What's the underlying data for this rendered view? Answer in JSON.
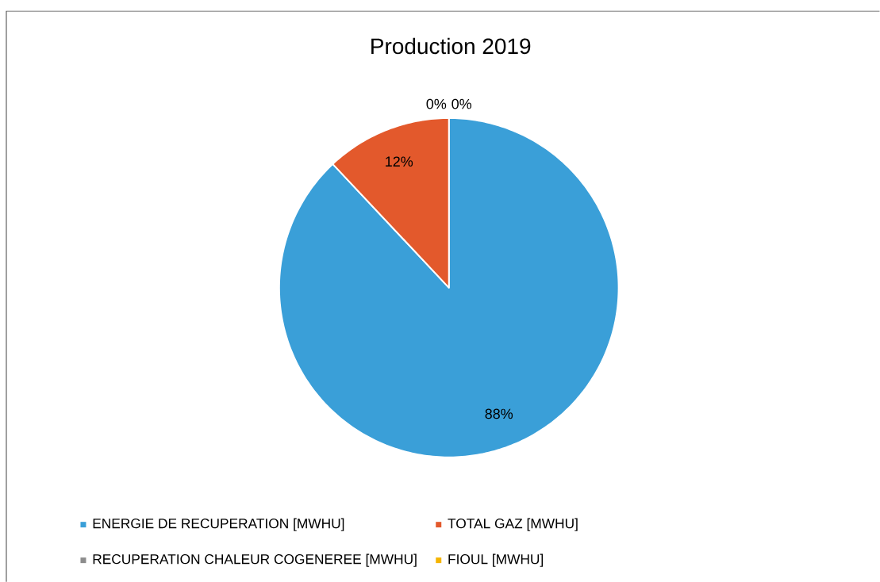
{
  "chart_data": {
    "type": "pie",
    "title": "Production 2019",
    "categories": [
      "ENERGIE DE RECUPERATION [MWHU]",
      "TOTAL GAZ  [MWHU]",
      "RECUPERATION CHALEUR COGENEREE [MWHU]",
      "FIOUL [MWHU]"
    ],
    "values": [
      88,
      12,
      0,
      0
    ],
    "colors": [
      "#3a9fd8",
      "#e3592c",
      "#8c8c8c",
      "#f5b400"
    ],
    "value_labels": [
      "88%",
      "12%",
      "0%",
      "0%"
    ],
    "legend": "bottom"
  }
}
